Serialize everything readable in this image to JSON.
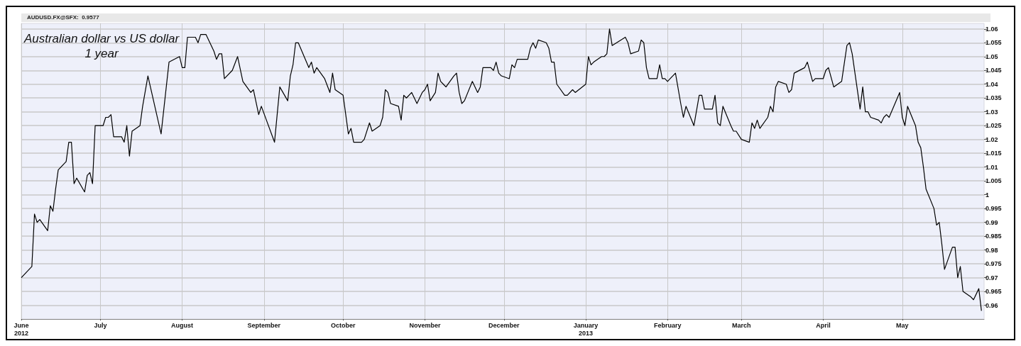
{
  "chart_data": {
    "type": "line",
    "title": "Australian dollar vs US dollar",
    "subtitle": "1 year",
    "annotations": [
      "AUDUSD.FX@SFX:  0.9577"
    ],
    "x": [
      "2012-06-01",
      "2012-06-05",
      "2012-06-06",
      "2012-06-07",
      "2012-06-08",
      "2012-06-11",
      "2012-06-12",
      "2012-06-13",
      "2012-06-14",
      "2012-06-15",
      "2012-06-18",
      "2012-06-19",
      "2012-06-20",
      "2012-06-21",
      "2012-06-22",
      "2012-06-25",
      "2012-06-26",
      "2012-06-27",
      "2012-06-28",
      "2012-06-29",
      "2012-07-02",
      "2012-07-03",
      "2012-07-04",
      "2012-07-05",
      "2012-07-06",
      "2012-07-09",
      "2012-07-10",
      "2012-07-11",
      "2012-07-12",
      "2012-07-13",
      "2012-07-16",
      "2012-07-17",
      "2012-07-19",
      "2012-07-24",
      "2012-07-27",
      "2012-07-31",
      "2012-08-01",
      "2012-08-02",
      "2012-08-03",
      "2012-08-06",
      "2012-08-07",
      "2012-08-08",
      "2012-08-09",
      "2012-08-10",
      "2012-08-13",
      "2012-08-14",
      "2012-08-15",
      "2012-08-16",
      "2012-08-17",
      "2012-08-20",
      "2012-08-22",
      "2012-08-24",
      "2012-08-27",
      "2012-08-28",
      "2012-08-30",
      "2012-08-31",
      "2012-09-05",
      "2012-09-07",
      "2012-09-10",
      "2012-09-11",
      "2012-09-12",
      "2012-09-13",
      "2012-09-14",
      "2012-09-18",
      "2012-09-19",
      "2012-09-20",
      "2012-09-21",
      "2012-09-24",
      "2012-09-26",
      "2012-09-27",
      "2012-09-28",
      "2012-10-01",
      "2012-10-03",
      "2012-10-04",
      "2012-10-05",
      "2012-10-08",
      "2012-10-09",
      "2012-10-11",
      "2012-10-12",
      "2012-10-15",
      "2012-10-16",
      "2012-10-17",
      "2012-10-18",
      "2012-10-19",
      "2012-10-22",
      "2012-10-23",
      "2012-10-24",
      "2012-10-25",
      "2012-10-27",
      "2012-10-29",
      "2012-10-31",
      "2012-11-01",
      "2012-11-02",
      "2012-11-03",
      "2012-11-05",
      "2012-11-06",
      "2012-11-07",
      "2012-11-08",
      "2012-11-09",
      "2012-11-12",
      "2012-11-13",
      "2012-11-14",
      "2012-11-15",
      "2012-11-16",
      "2012-11-19",
      "2012-11-21",
      "2012-11-22",
      "2012-11-23",
      "2012-11-26",
      "2012-11-27",
      "2012-11-28",
      "2012-11-29",
      "2012-11-30",
      "2012-12-03",
      "2012-12-04",
      "2012-12-05",
      "2012-12-06",
      "2012-12-10",
      "2012-12-11",
      "2012-12-12",
      "2012-12-13",
      "2012-12-14",
      "2012-12-17",
      "2012-12-18",
      "2012-12-19",
      "2012-12-20",
      "2012-12-21",
      "2012-12-24",
      "2012-12-25",
      "2012-12-27",
      "2012-12-28",
      "2013-01-01",
      "2013-01-02",
      "2013-01-03",
      "2013-01-04",
      "2013-01-07",
      "2013-01-08",
      "2013-01-09",
      "2013-01-10",
      "2013-01-11",
      "2013-01-16",
      "2013-01-17",
      "2013-01-18",
      "2013-01-21",
      "2013-01-22",
      "2013-01-23",
      "2013-01-24",
      "2013-01-25",
      "2013-01-28",
      "2013-01-29",
      "2013-01-30",
      "2013-01-31",
      "2013-02-01",
      "2013-02-02",
      "2013-02-04",
      "2013-02-06",
      "2013-02-07",
      "2013-02-08",
      "2013-02-11",
      "2013-02-13",
      "2013-02-14",
      "2013-02-15",
      "2013-02-18",
      "2013-02-19",
      "2013-02-20",
      "2013-02-21",
      "2013-02-22",
      "2013-02-25",
      "2013-02-26",
      "2013-02-27",
      "2013-03-01",
      "2013-03-04",
      "2013-03-05",
      "2013-03-06",
      "2013-03-07",
      "2013-03-08",
      "2013-03-11",
      "2013-03-12",
      "2013-03-13",
      "2013-03-14",
      "2013-03-15",
      "2013-03-18",
      "2013-03-19",
      "2013-03-20",
      "2013-03-21",
      "2013-03-25",
      "2013-03-26",
      "2013-03-28",
      "2013-03-29",
      "2013-04-01",
      "2013-04-02",
      "2013-04-03",
      "2013-04-05",
      "2013-04-08",
      "2013-04-10",
      "2013-04-11",
      "2013-04-12",
      "2013-04-15",
      "2013-04-16",
      "2013-04-17",
      "2013-04-18",
      "2013-04-19",
      "2013-04-22",
      "2013-04-23",
      "2013-04-24",
      "2013-04-25",
      "2013-04-26",
      "2013-04-30",
      "2013-05-01",
      "2013-05-02",
      "2013-05-03",
      "2013-05-06",
      "2013-05-07",
      "2013-05-08",
      "2013-05-09",
      "2013-05-10",
      "2013-05-13",
      "2013-05-14",
      "2013-05-15",
      "2013-05-16",
      "2013-05-17",
      "2013-05-20",
      "2013-05-21",
      "2013-05-22",
      "2013-05-23",
      "2013-05-24",
      "2013-05-27",
      "2013-05-28",
      "2013-05-30",
      "2013-05-31"
    ],
    "series": [
      {
        "color": "#000000",
        "values": [
          0.97,
          0.974,
          0.993,
          0.99,
          0.991,
          0.987,
          0.996,
          0.994,
          1.002,
          1.009,
          1.012,
          1.019,
          1.019,
          1.004,
          1.006,
          1.001,
          1.007,
          1.008,
          1.004,
          1.025,
          1.025,
          1.028,
          1.028,
          1.029,
          1.021,
          1.021,
          1.019,
          1.025,
          1.014,
          1.023,
          1.025,
          1.032,
          1.043,
          1.022,
          1.048,
          1.05,
          1.046,
          1.046,
          1.057,
          1.057,
          1.055,
          1.058,
          1.058,
          1.058,
          1.052,
          1.049,
          1.051,
          1.051,
          1.042,
          1.045,
          1.05,
          1.041,
          1.037,
          1.038,
          1.029,
          1.032,
          1.019,
          1.039,
          1.034,
          1.043,
          1.047,
          1.055,
          1.055,
          1.046,
          1.048,
          1.044,
          1.046,
          1.042,
          1.037,
          1.044,
          1.038,
          1.036,
          1.022,
          1.024,
          1.019,
          1.019,
          1.02,
          1.026,
          1.023,
          1.025,
          1.028,
          1.038,
          1.037,
          1.033,
          1.032,
          1.027,
          1.036,
          1.035,
          1.037,
          1.033,
          1.037,
          1.038,
          1.04,
          1.034,
          1.037,
          1.044,
          1.041,
          1.04,
          1.039,
          1.043,
          1.044,
          1.037,
          1.033,
          1.034,
          1.041,
          1.037,
          1.039,
          1.046,
          1.046,
          1.045,
          1.048,
          1.044,
          1.043,
          1.042,
          1.047,
          1.046,
          1.049,
          1.049,
          1.053,
          1.055,
          1.053,
          1.056,
          1.055,
          1.053,
          1.048,
          1.048,
          1.04,
          1.036,
          1.036,
          1.038,
          1.037,
          1.04,
          1.05,
          1.047,
          1.048,
          1.05,
          1.05,
          1.051,
          1.06,
          1.054,
          1.057,
          1.055,
          1.051,
          1.052,
          1.056,
          1.055,
          1.046,
          1.042,
          1.042,
          1.047,
          1.042,
          1.042,
          1.041,
          1.042,
          1.044,
          1.033,
          1.028,
          1.032,
          1.025,
          1.036,
          1.036,
          1.031,
          1.031,
          1.036,
          1.026,
          1.025,
          1.032,
          1.025,
          1.023,
          1.023,
          1.02,
          1.019,
          1.026,
          1.024,
          1.027,
          1.024,
          1.028,
          1.032,
          1.03,
          1.039,
          1.041,
          1.04,
          1.037,
          1.038,
          1.044,
          1.046,
          1.048,
          1.041,
          1.042,
          1.042,
          1.045,
          1.046,
          1.039,
          1.041,
          1.054,
          1.055,
          1.051,
          1.031,
          1.039,
          1.03,
          1.03,
          1.028,
          1.027,
          1.026,
          1.028,
          1.029,
          1.028,
          1.037,
          1.028,
          1.025,
          1.032,
          1.025,
          1.019,
          1.017,
          1.01,
          1.002,
          0.995,
          0.989,
          0.99,
          0.982,
          0.973,
          0.981,
          0.981,
          0.97,
          0.974,
          0.965,
          0.963,
          0.962,
          0.966,
          0.958
        ]
      }
    ],
    "xlim": [
      "2012-06-01",
      "2013-06-01"
    ],
    "xticks": [
      {
        "value": "2012-06-01",
        "label": "June\n2012"
      },
      {
        "value": "2012-07-01",
        "label": "July"
      },
      {
        "value": "2012-08-01",
        "label": "August"
      },
      {
        "value": "2012-09-01",
        "label": "September"
      },
      {
        "value": "2012-10-01",
        "label": "October"
      },
      {
        "value": "2012-11-01",
        "label": "November"
      },
      {
        "value": "2012-12-01",
        "label": "December"
      },
      {
        "value": "2013-01-01",
        "label": "January\n2013"
      },
      {
        "value": "2013-02-01",
        "label": "February"
      },
      {
        "value": "2013-03-01",
        "label": "March"
      },
      {
        "value": "2013-04-01",
        "label": "April"
      },
      {
        "value": "2013-05-01",
        "label": "May"
      }
    ],
    "ylim": [
      0.955,
      1.062
    ],
    "yticks": [
      0.96,
      0.965,
      0.97,
      0.975,
      0.98,
      0.985,
      0.99,
      0.995,
      1,
      1.005,
      1.01,
      1.015,
      1.02,
      1.025,
      1.03,
      1.035,
      1.04,
      1.045,
      1.05,
      1.055,
      1.06
    ],
    "grid": true,
    "marker": "none",
    "line_style": "solid"
  }
}
